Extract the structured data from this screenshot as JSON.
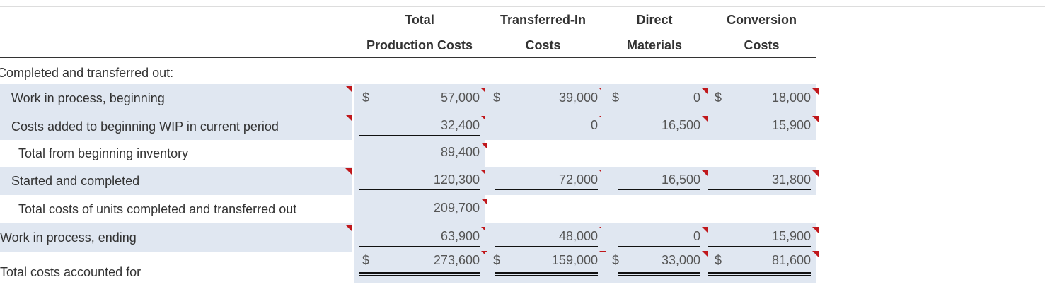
{
  "headers": [
    {
      "line1": "Total",
      "line2": "Production Costs"
    },
    {
      "line1": "Transferred-In",
      "line2": "Costs"
    },
    {
      "line1": "Direct",
      "line2": "Materials"
    },
    {
      "line1": "Conversion",
      "line2": "Costs"
    }
  ],
  "section_label": "Completed and transferred out:",
  "rows": [
    {
      "label": "Work in process, beginning",
      "values": [
        {
          "dollar": "$",
          "value": "57,000"
        },
        {
          "dollar": "$",
          "value": "39,000"
        },
        {
          "dollar": "$",
          "value": "0"
        },
        {
          "dollar": "$",
          "value": "18,000"
        }
      ]
    },
    {
      "label": "Costs added to beginning WIP in current period",
      "values": [
        {
          "value": "32,400"
        },
        {
          "value": "0"
        },
        {
          "value": "16,500"
        },
        {
          "value": "15,900"
        }
      ]
    },
    {
      "label": "Total from beginning inventory",
      "values": [
        {
          "value": "89,400"
        }
      ]
    },
    {
      "label": "Started and completed",
      "values": [
        {
          "value": "120,300"
        },
        {
          "value": "72,000"
        },
        {
          "value": "16,500"
        },
        {
          "value": "31,800"
        }
      ]
    },
    {
      "label": "Total costs of units completed and transferred out",
      "values": [
        {
          "value": "209,700"
        }
      ]
    },
    {
      "label": "Work in process, ending",
      "values": [
        {
          "value": "63,900"
        },
        {
          "value": "48,000"
        },
        {
          "value": "0"
        },
        {
          "value": "15,900"
        }
      ]
    },
    {
      "label": "Total costs accounted for",
      "values": [
        {
          "dollar": "$",
          "value": "273,600"
        },
        {
          "dollar": "$",
          "value": "159,000"
        },
        {
          "dollar": "$",
          "value": "33,000"
        },
        {
          "dollar": "$",
          "value": "81,600"
        }
      ]
    }
  ],
  "colors": {
    "row_shade": "#e0e7f1",
    "marker": "#c0181c"
  }
}
